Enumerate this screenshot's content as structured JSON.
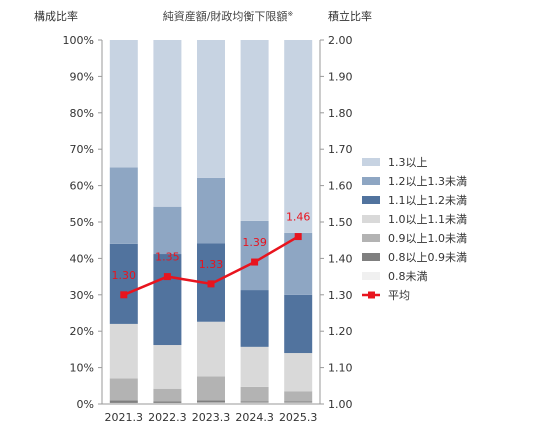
{
  "chart_data": {
    "type": "bar",
    "stacked": true,
    "title": "純資産額/財政均衡下限額",
    "title_mark": "※",
    "left_axis_label": "構成比率",
    "right_axis_label": "積立比率",
    "categories": [
      "2021.3",
      "2022.3",
      "2023.3",
      "2024.3",
      "2025.3"
    ],
    "left_ylim": [
      0,
      100
    ],
    "left_ticks": [
      "0%",
      "10%",
      "20%",
      "30%",
      "40%",
      "50%",
      "60%",
      "70%",
      "80%",
      "90%",
      "100%"
    ],
    "right_ylim": [
      1.0,
      2.0
    ],
    "right_ticks": [
      "1.00",
      "1.10",
      "1.20",
      "1.30",
      "1.40",
      "1.50",
      "1.60",
      "1.70",
      "1.80",
      "1.90",
      "2.00"
    ],
    "series": [
      {
        "name": "0.8未満",
        "color": "#f0f0f0",
        "values": [
          0.3,
          0.3,
          0.4,
          0.4,
          0.4
        ]
      },
      {
        "name": "0.8以上0.9未満",
        "color": "#7f7f7f",
        "values": [
          0.7,
          0.4,
          0.6,
          0.3,
          0.3
        ]
      },
      {
        "name": "0.9以上1.0未満",
        "color": "#b3b3b3",
        "values": [
          6.0,
          3.5,
          6.6,
          4.0,
          2.8
        ]
      },
      {
        "name": "1.0以上1.1未満",
        "color": "#d9d9d9",
        "values": [
          15.0,
          12.0,
          15.0,
          11.0,
          10.5
        ]
      },
      {
        "name": "1.1以上1.2未満",
        "color": "#51739e",
        "values": [
          22.0,
          25.0,
          21.5,
          15.6,
          16.0
        ]
      },
      {
        "name": "1.2以上1.3未満",
        "color": "#8ea6c3",
        "values": [
          21.0,
          13.0,
          18.0,
          19.0,
          17.0
        ]
      },
      {
        "name": "1.3以上",
        "color": "#c7d3e2",
        "values": [
          35.0,
          45.8,
          37.9,
          49.7,
          53.0
        ]
      }
    ],
    "line": {
      "name": "平均",
      "color": "#e8141e",
      "axis": "right",
      "values": [
        1.3,
        1.35,
        1.33,
        1.39,
        1.46
      ],
      "labels": [
        "1.30",
        "1.35",
        "1.33",
        "1.39",
        "1.46"
      ]
    },
    "legend_position": "right",
    "grid": false
  }
}
